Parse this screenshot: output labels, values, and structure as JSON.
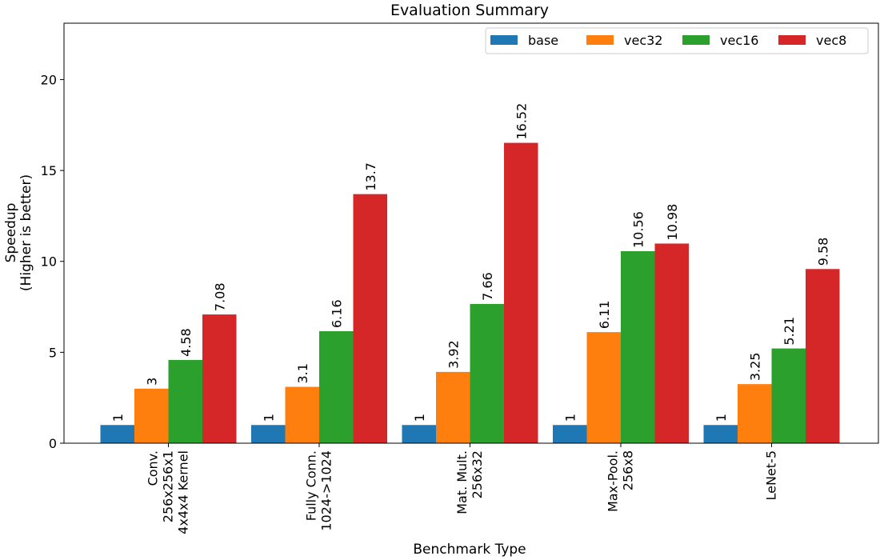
{
  "chart_data": {
    "type": "bar",
    "title": "Evaluation Summary",
    "xlabel": "Benchmark Type",
    "ylabel": [
      "Speedup",
      "(Higher is better)"
    ],
    "ylim": [
      0,
      23.1
    ],
    "yticks": [
      0,
      5,
      10,
      15,
      20
    ],
    "grid": false,
    "legend_position": "top-right",
    "categories": [
      [
        "Conv.",
        "256x256x1",
        "4x4x4 Kernel"
      ],
      [
        "Fully Conn.",
        "1024->1024"
      ],
      [
        "Mat. Mult.",
        "256x32"
      ],
      [
        "Max-Pool.",
        "256x8"
      ],
      [
        "LeNet-5"
      ]
    ],
    "series": [
      {
        "name": "base",
        "color": "#1f77b4",
        "values": [
          1,
          1,
          1,
          1,
          1
        ],
        "labels": [
          "1",
          "1",
          "1",
          "1",
          "1"
        ]
      },
      {
        "name": "vec32",
        "color": "#ff7f0e",
        "values": [
          3,
          3.1,
          3.92,
          6.11,
          3.25
        ],
        "labels": [
          "3",
          "3.1",
          "3.92",
          "6.11",
          "3.25"
        ]
      },
      {
        "name": "vec16",
        "color": "#2ca02c",
        "values": [
          4.58,
          6.16,
          7.66,
          10.56,
          5.21
        ],
        "labels": [
          "4.58",
          "6.16",
          "7.66",
          "10.56",
          "5.21"
        ]
      },
      {
        "name": "vec8",
        "color": "#d62728",
        "values": [
          7.08,
          13.7,
          16.52,
          10.98,
          9.58
        ],
        "labels": [
          "7.08",
          "13.7",
          "16.52",
          "10.98",
          "9.58"
        ]
      }
    ]
  }
}
